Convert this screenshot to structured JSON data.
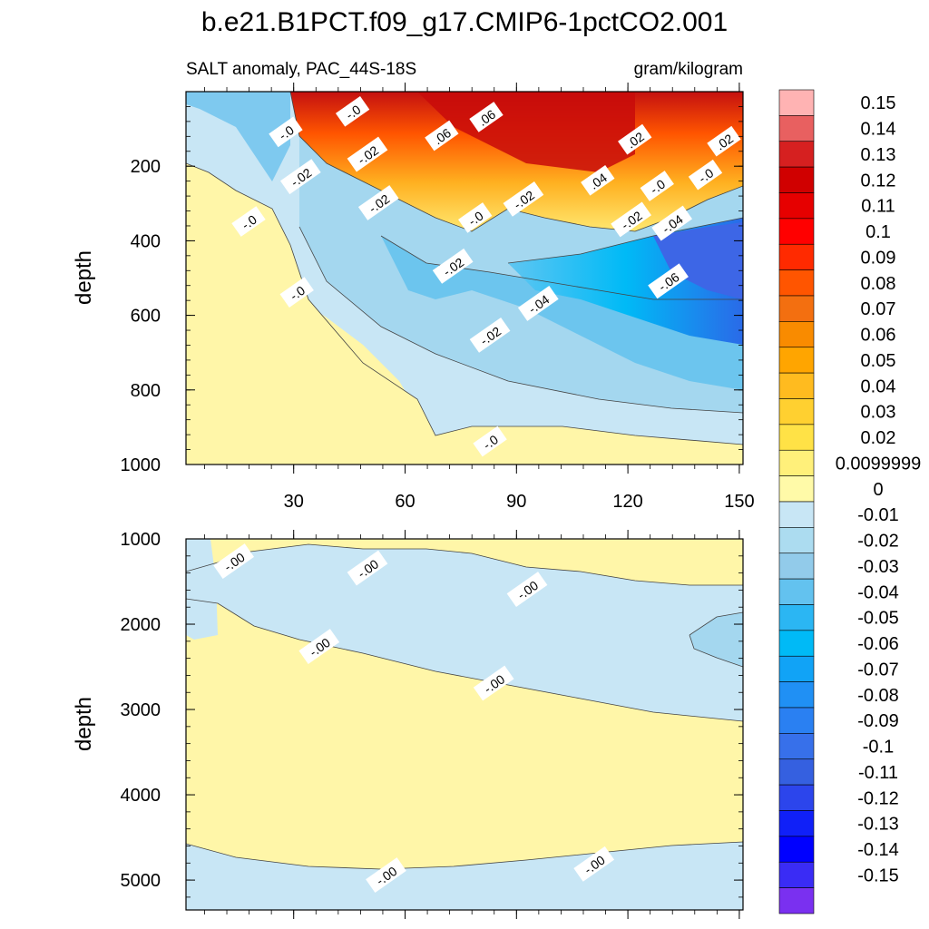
{
  "title": "b.e21.B1PCT.f09_g17.CMIP6-1pctCO2.001",
  "subtitle_left": "SALT anomaly, PAC_44S-18S",
  "subtitle_right": "gram/kilogram",
  "chart_data": [
    {
      "type": "heatmap",
      "panel": "upper",
      "ylabel": "depth",
      "xlim": [
        1,
        151
      ],
      "ylim": [
        1000,
        0
      ],
      "xticks": [
        30,
        60,
        90,
        120,
        150
      ],
      "yticks": [
        200,
        400,
        600,
        800,
        1000
      ],
      "contour_labels": [
        {
          "text": "-.0",
          "x": 28,
          "y": 110
        },
        {
          "text": "-.0",
          "x": 46,
          "y": 55
        },
        {
          "text": "-.02",
          "x": 50,
          "y": 170
        },
        {
          "text": "-.02",
          "x": 32,
          "y": 230
        },
        {
          "text": "-.02",
          "x": 53,
          "y": 300
        },
        {
          "text": "-.0",
          "x": 18,
          "y": 350
        },
        {
          "text": "-.0",
          "x": 31,
          "y": 540
        },
        {
          "text": ".06",
          "x": 70,
          "y": 120
        },
        {
          "text": ".06",
          "x": 82,
          "y": 70
        },
        {
          "text": "-.0",
          "x": 79,
          "y": 340
        },
        {
          "text": "-.02",
          "x": 73,
          "y": 470
        },
        {
          "text": "-.02",
          "x": 92,
          "y": 290
        },
        {
          "text": ".04",
          "x": 112,
          "y": 240
        },
        {
          "text": ".02",
          "x": 122,
          "y": 130
        },
        {
          "text": "-.02",
          "x": 121,
          "y": 345
        },
        {
          "text": "-.0",
          "x": 128,
          "y": 255
        },
        {
          "text": "-.04",
          "x": 132,
          "y": 355
        },
        {
          "text": ".02",
          "x": 146,
          "y": 135
        },
        {
          "text": "-.0",
          "x": 141,
          "y": 225
        },
        {
          "text": "-.06",
          "x": 131,
          "y": 510
        },
        {
          "text": "-.04",
          "x": 96,
          "y": 570
        },
        {
          "text": "-.02",
          "x": 83,
          "y": 655
        },
        {
          "text": "-.0",
          "x": 83,
          "y": 940
        }
      ]
    },
    {
      "type": "heatmap",
      "panel": "lower",
      "ylabel": "depth",
      "xlim": [
        1,
        151
      ],
      "ylim": [
        5350,
        1000
      ],
      "yticks": [
        1000,
        2000,
        3000,
        4000,
        5000
      ],
      "contour_labels": [
        {
          "text": "-.00",
          "x": 14,
          "y": 1270
        },
        {
          "text": "-.00",
          "x": 50,
          "y": 1350
        },
        {
          "text": "-.00",
          "x": 93,
          "y": 1600
        },
        {
          "text": "-.00",
          "x": 37,
          "y": 2270
        },
        {
          "text": "-.00",
          "x": 84,
          "y": 2700
        },
        {
          "text": "-.00",
          "x": 111,
          "y": 4820
        },
        {
          "text": "-.00",
          "x": 55,
          "y": 4950
        }
      ]
    }
  ],
  "colorbar": {
    "labels": [
      "0.15",
      "0.14",
      "0.13",
      "0.12",
      "0.11",
      "0.1",
      "0.09",
      "0.08",
      "0.07",
      "0.06",
      "0.05",
      "0.04",
      "0.03",
      "0.02",
      "0.0099999",
      "0",
      "-0.01",
      "-0.02",
      "-0.03",
      "-0.04",
      "-0.05",
      "-0.06",
      "-0.07",
      "-0.08",
      "-0.09",
      "-0.1",
      "-0.11",
      "-0.12",
      "-0.13",
      "-0.14",
      "-0.15"
    ],
    "colors": [
      "#ffb3b3",
      "#e86060",
      "#d62020",
      "#d00000",
      "#e60000",
      "#ff0000",
      "#ff2a00",
      "#ff5500",
      "#f36f10",
      "#f98b00",
      "#ffa500",
      "#ffbb1f",
      "#ffd030",
      "#ffe246",
      "#fff07a",
      "#fffaa8",
      "#c8e6f5",
      "#acdcf0",
      "#92cbea",
      "#63c2ef",
      "#2bb6f3",
      "#00baf6",
      "#11a3f6",
      "#2090f4",
      "#2a80f2",
      "#3770ea",
      "#3560e0",
      "#2c45ec",
      "#1020f8",
      "#0000ff",
      "#3a2cf5",
      "#7a30f0"
    ]
  }
}
